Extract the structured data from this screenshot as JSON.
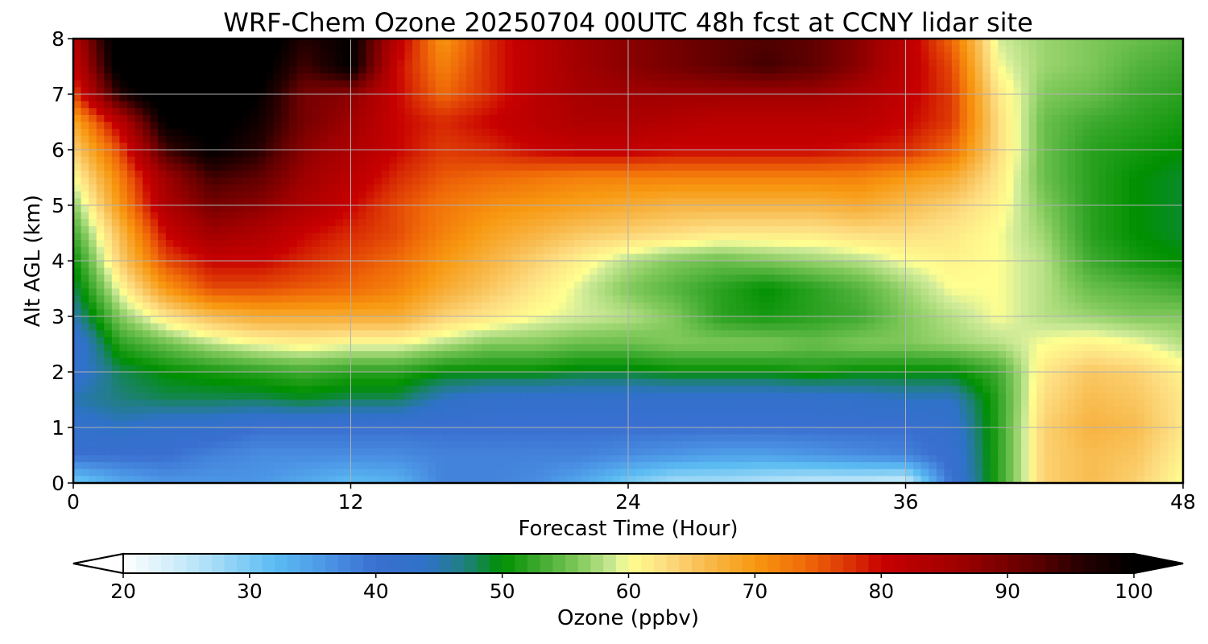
{
  "chart_data": {
    "type": "heatmap",
    "title": "WRF-Chem Ozone  20250704 00UTC 48h fcst at CCNY lidar site",
    "xlabel": "Forecast Time (Hour)",
    "ylabel": "Alt AGL (km)",
    "xlim": [
      0,
      48
    ],
    "ylim": [
      0,
      8
    ],
    "xticks": [
      0,
      12,
      24,
      36,
      48
    ],
    "yticks": [
      0,
      1,
      2,
      3,
      4,
      5,
      6,
      7,
      8
    ],
    "grid": true,
    "x": [
      0,
      2,
      4,
      6,
      8,
      10,
      12,
      14,
      16,
      18,
      20,
      22,
      24,
      26,
      28,
      30,
      32,
      34,
      36,
      38,
      40,
      42,
      44,
      46,
      48
    ],
    "y": [
      0,
      0.5,
      1,
      1.5,
      2,
      2.5,
      3,
      3.5,
      4,
      4.5,
      5,
      5.5,
      6,
      6.5,
      7,
      7.5,
      8
    ],
    "z": [
      [
        30,
        34,
        36,
        36,
        36,
        34,
        32,
        33,
        38,
        38,
        37,
        34,
        30,
        27,
        27,
        26,
        25,
        25,
        24,
        40,
        52,
        64,
        66,
        64,
        60
      ],
      [
        40,
        40,
        40,
        38,
        37,
        37,
        37,
        37,
        38,
        38,
        38,
        38,
        37,
        36,
        35,
        35,
        36,
        37,
        38,
        41,
        52,
        64,
        66,
        65,
        61
      ],
      [
        42,
        44,
        42,
        42,
        40,
        40,
        40,
        40,
        40,
        40,
        40,
        40,
        40,
        40,
        40,
        40,
        40,
        40,
        40,
        42,
        52,
        64,
        67,
        66,
        62
      ],
      [
        45,
        47,
        48,
        48,
        48,
        49,
        48,
        48,
        44,
        42,
        42,
        42,
        42,
        42,
        42,
        42,
        42,
        43,
        44,
        44,
        52,
        63,
        66,
        65,
        62
      ],
      [
        42,
        48,
        50,
        51,
        52,
        53,
        52,
        52,
        50,
        50,
        50,
        49,
        49,
        50,
        50,
        50,
        51,
        50,
        50,
        50,
        53,
        62,
        65,
        64,
        61
      ],
      [
        41,
        52,
        55,
        58,
        60,
        61,
        60,
        60,
        58,
        56,
        56,
        55,
        55,
        56,
        56,
        56,
        55,
        56,
        56,
        57,
        58,
        60,
        61,
        60,
        58
      ],
      [
        45,
        56,
        62,
        66,
        68,
        68,
        68,
        68,
        64,
        62,
        60,
        59,
        58,
        56,
        52,
        51,
        52,
        53,
        56,
        58,
        60,
        58,
        57,
        56,
        56
      ],
      [
        48,
        60,
        70,
        76,
        76,
        75,
        74,
        72,
        68,
        65,
        62,
        59,
        56,
        54,
        52,
        50,
        52,
        54,
        57,
        60,
        60,
        58,
        55,
        54,
        53
      ],
      [
        50,
        64,
        76,
        80,
        80,
        78,
        76,
        74,
        70,
        67,
        64,
        61,
        58,
        56,
        55,
        56,
        57,
        58,
        60,
        61,
        60,
        58,
        53,
        51,
        50
      ],
      [
        53,
        66,
        80,
        86,
        84,
        80,
        78,
        76,
        72,
        69,
        67,
        65,
        64,
        63,
        62,
        62,
        62,
        63,
        63,
        62,
        60,
        57,
        52,
        50,
        49
      ],
      [
        56,
        70,
        84,
        90,
        88,
        84,
        80,
        76,
        73,
        71,
        70,
        69,
        68,
        67,
        67,
        67,
        67,
        68,
        66,
        64,
        61,
        56,
        52,
        50,
        49
      ],
      [
        60,
        72,
        86,
        94,
        92,
        86,
        82,
        78,
        75,
        74,
        73,
        72,
        72,
        72,
        72,
        72,
        72,
        72,
        70,
        68,
        62,
        55,
        52,
        50,
        49
      ],
      [
        64,
        76,
        94,
        100,
        96,
        88,
        84,
        80,
        77,
        78,
        80,
        81,
        81,
        80,
        80,
        80,
        80,
        79,
        78,
        74,
        63,
        55,
        52,
        51,
        50
      ],
      [
        68,
        82,
        100,
        102,
        98,
        90,
        86,
        80,
        78,
        80,
        82,
        84,
        84,
        83,
        82,
        82,
        82,
        82,
        80,
        77,
        63,
        55,
        53,
        52,
        51
      ],
      [
        76,
        96,
        104,
        104,
        100,
        90,
        88,
        80,
        74,
        78,
        82,
        85,
        86,
        86,
        86,
        86,
        86,
        84,
        81,
        77,
        62,
        56,
        55,
        53,
        52
      ],
      [
        80,
        102,
        106,
        106,
        102,
        94,
        100,
        80,
        72,
        78,
        82,
        86,
        88,
        90,
        92,
        94,
        92,
        88,
        82,
        76,
        60,
        57,
        56,
        54,
        53
      ],
      [
        82,
        104,
        106,
        108,
        104,
        96,
        100,
        82,
        70,
        78,
        82,
        86,
        88,
        90,
        92,
        93,
        92,
        88,
        82,
        74,
        59,
        57,
        56,
        55,
        54
      ]
    ],
    "colorbar": {
      "label": "Ozone  (ppbv)",
      "min": 20,
      "max": 100,
      "ticks": [
        20,
        30,
        40,
        50,
        60,
        70,
        80,
        90,
        100
      ],
      "extend": "both",
      "orientation": "horizontal",
      "under_color": "#ffffff",
      "over_color": "#000000",
      "stops": [
        [
          20,
          "#ffffff"
        ],
        [
          26,
          "#b8e4f8"
        ],
        [
          32,
          "#5bbcf2"
        ],
        [
          36,
          "#4c96e6"
        ],
        [
          40,
          "#3a6fd0"
        ],
        [
          44,
          "#2e72c8"
        ],
        [
          47,
          "#1f7f80"
        ],
        [
          50,
          "#009000"
        ],
        [
          53,
          "#3faa30"
        ],
        [
          56,
          "#7fc85a"
        ],
        [
          59,
          "#d2ec9a"
        ],
        [
          60,
          "#ffff90"
        ],
        [
          63,
          "#fddc80"
        ],
        [
          66,
          "#f8bc50"
        ],
        [
          70,
          "#f89810"
        ],
        [
          74,
          "#f06a08"
        ],
        [
          78,
          "#d82a04"
        ],
        [
          80,
          "#c80000"
        ],
        [
          86,
          "#a00000"
        ],
        [
          92,
          "#600000"
        ],
        [
          96,
          "#240000"
        ],
        [
          100,
          "#000000"
        ]
      ]
    }
  }
}
